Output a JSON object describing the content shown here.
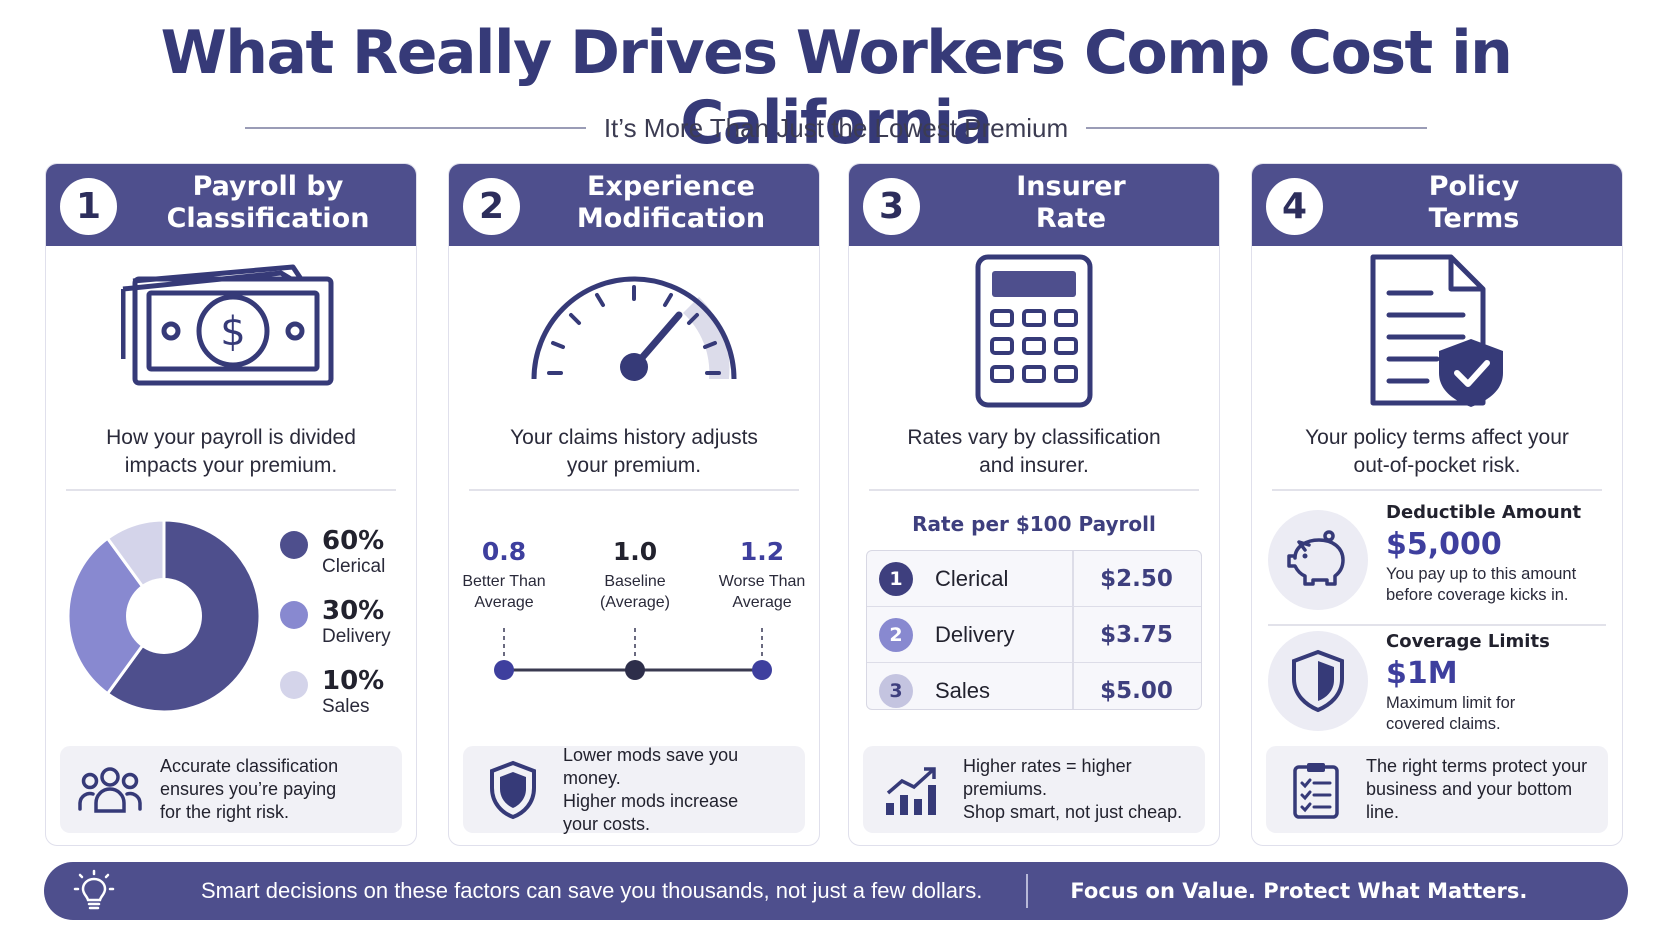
{
  "header": {
    "title": "What Really Drives Workers Comp Cost in California",
    "subtitle": "It’s More Than Just the Lowest Premium"
  },
  "colors": {
    "brand": "#4e4f8d",
    "accent": "#3e3f9e",
    "light": "#8889d0",
    "pale": "#d4d4ea"
  },
  "cards": [
    {
      "number": "1",
      "title_line1": "Payroll by",
      "title_line2": "Classification",
      "icon": "money-bill-icon",
      "desc_line1": "How your payroll is divided",
      "desc_line2": "impacts your premium.",
      "breakdown": [
        {
          "pct": "60%",
          "label": "Clerical",
          "value": 60,
          "color": "#4e4f8d"
        },
        {
          "pct": "30%",
          "label": "Delivery",
          "value": 30,
          "color": "#8889d0"
        },
        {
          "pct": "10%",
          "label": "Sales",
          "value": 10,
          "color": "#d4d4ea"
        }
      ],
      "footer_icon": "people-group-icon",
      "footer_line1": "Accurate classification",
      "footer_line2": "ensures you’re paying",
      "footer_line3": "for the right risk."
    },
    {
      "number": "2",
      "title_line1": "Experience",
      "title_line2": "Modification",
      "icon": "gauge-icon",
      "desc_line1": "Your claims history adjusts",
      "desc_line2": "your premium.",
      "mods": [
        {
          "value": "0.8",
          "label_line1": "Better Than",
          "label_line2": "Average",
          "color": "#3e3f9e"
        },
        {
          "value": "1.0",
          "label_line1": "Baseline",
          "label_line2": "(Average)",
          "color": "#22222e"
        },
        {
          "value": "1.2",
          "label_line1": "Worse Than",
          "label_line2": "Average",
          "color": "#3e3f9e"
        }
      ],
      "footer_icon": "shield-icon",
      "footer_line1": "Lower mods save you money.",
      "footer_line2": "Higher mods increase",
      "footer_line3": "your costs."
    },
    {
      "number": "3",
      "title_line1": "Insurer",
      "title_line2": "Rate",
      "icon": "calculator-icon",
      "desc_line1": "Rates vary by classification",
      "desc_line2": "and insurer.",
      "rate_heading": "Rate per $100 Payroll",
      "rates": [
        {
          "num": "1",
          "name": "Clerical",
          "rate": "$2.50",
          "color": "#3e3f7e"
        },
        {
          "num": "2",
          "name": "Delivery",
          "rate": "$3.75",
          "color": "#8889d0"
        },
        {
          "num": "3",
          "name": "Sales",
          "rate": "$5.00",
          "color": "#c4c4e0"
        }
      ],
      "footer_icon": "bar-chart-growth-icon",
      "footer_line1": "Higher rates = higher premiums.",
      "footer_line2": "Shop smart, not just cheap."
    },
    {
      "number": "4",
      "title_line1": "Policy",
      "title_line2": "Terms",
      "icon": "document-shield-icon",
      "desc_line1": "Your policy terms affect your",
      "desc_line2": "out-of-pocket risk.",
      "terms": [
        {
          "icon": "piggy-bank-icon",
          "title": "Deductible Amount",
          "value": "$5,000",
          "desc_line1": "You pay up to this amount",
          "desc_line2": "before coverage kicks in."
        },
        {
          "icon": "shield-icon",
          "title": "Coverage Limits",
          "value": "$1M",
          "desc_line1": "Maximum limit for",
          "desc_line2": "covered claims."
        }
      ],
      "footer_icon": "clipboard-checklist-icon",
      "footer_line1": "The right terms protect your",
      "footer_line2": "business and your bottom line."
    }
  ],
  "bottom_bar": {
    "icon": "lightbulb-icon",
    "text": "Smart decisions on these factors can save you thousands, not just a few dollars.",
    "strong": "Focus on Value. Protect What Matters."
  }
}
